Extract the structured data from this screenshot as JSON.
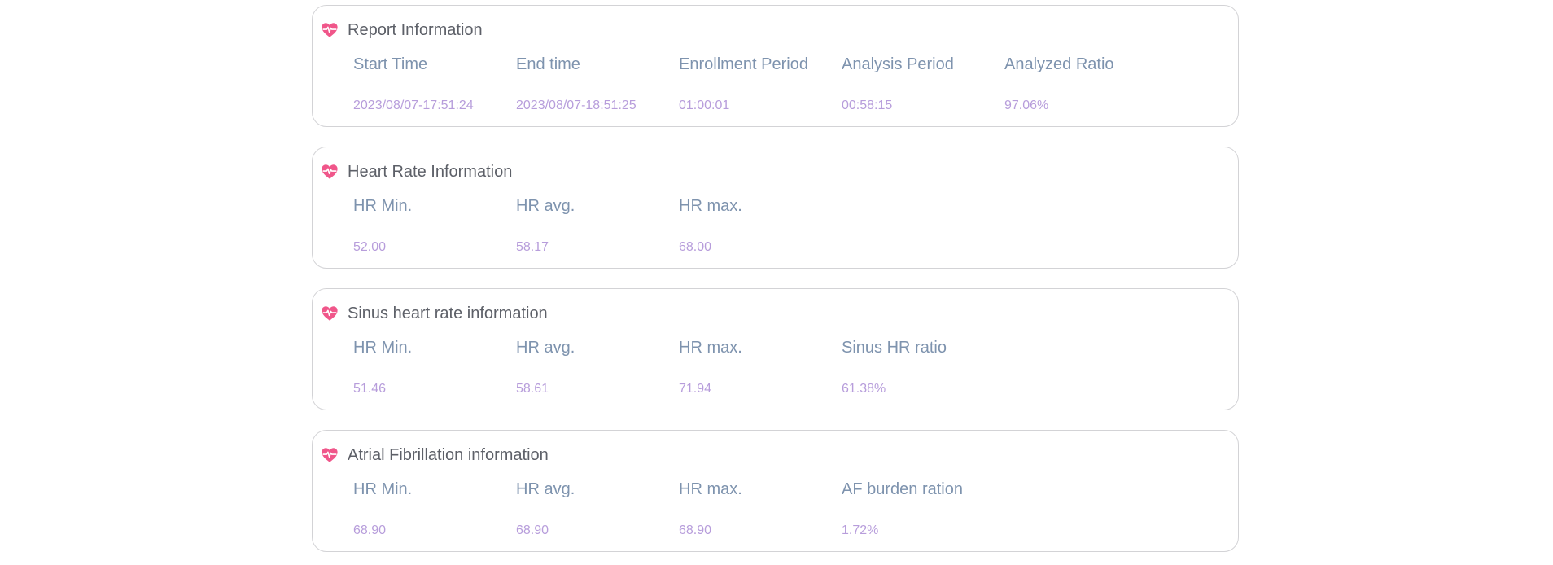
{
  "colors": {
    "card_border": "#d3d3d6",
    "title_text": "#5d6068",
    "label_text": "#7e93ae",
    "value_text": "#b79ddb",
    "heart_icon": "#f0568a"
  },
  "icons": {
    "section": "heart-pulse-icon"
  },
  "sections": [
    {
      "title": "Report Information",
      "fields": [
        {
          "label": "Start Time",
          "value": "2023/08/07-17:51:24"
        },
        {
          "label": "End time",
          "value": "2023/08/07-18:51:25"
        },
        {
          "label": "Enrollment Period",
          "value": "01:00:01"
        },
        {
          "label": "Analysis Period",
          "value": "00:58:15"
        },
        {
          "label": "Analyzed Ratio",
          "value": "97.06%"
        }
      ]
    },
    {
      "title": "Heart Rate Information",
      "fields": [
        {
          "label": "HR Min.",
          "value": "52.00"
        },
        {
          "label": "HR avg.",
          "value": "58.17"
        },
        {
          "label": "HR max.",
          "value": "68.00"
        }
      ]
    },
    {
      "title": "Sinus heart rate information",
      "fields": [
        {
          "label": "HR Min.",
          "value": "51.46"
        },
        {
          "label": "HR avg.",
          "value": "58.61"
        },
        {
          "label": "HR max.",
          "value": "71.94"
        },
        {
          "label": "Sinus HR ratio",
          "value": "61.38%"
        }
      ]
    },
    {
      "title": "Atrial Fibrillation information",
      "fields": [
        {
          "label": "HR Min.",
          "value": "68.90"
        },
        {
          "label": "HR avg.",
          "value": "68.90"
        },
        {
          "label": "HR max.",
          "value": "68.90"
        },
        {
          "label": "AF burden ration",
          "value": "1.72%"
        }
      ]
    }
  ]
}
